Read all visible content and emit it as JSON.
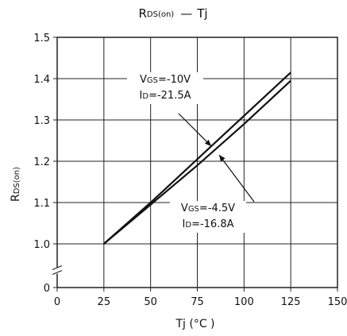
{
  "chart_data": {
    "type": "line",
    "title": {
      "main": "R",
      "main_sub": "DS(on)",
      "sep": "—",
      "var": "Tj"
    },
    "xlabel": "Tj (°C )",
    "ylabel": {
      "main": "R",
      "sub": "DS(on)"
    },
    "xlim": [
      0,
      150
    ],
    "ylim": [
      0,
      1.5
    ],
    "x_ticks": [
      0,
      25,
      50,
      75,
      100,
      125,
      150
    ],
    "y_ticks": [
      0,
      1.0,
      1.1,
      1.2,
      1.3,
      1.4,
      1.5
    ],
    "x_tick_labels": [
      "0",
      "25",
      "50",
      "75",
      "100",
      "125",
      "150"
    ],
    "y_tick_labels": [
      "0",
      "1.0",
      "1.1",
      "1.2",
      "1.3",
      "1.4",
      "1.5"
    ],
    "axis_break": true,
    "grid": true,
    "series": [
      {
        "x": [
          25,
          50,
          75,
          100,
          125
        ],
        "y": [
          1.0,
          1.1,
          1.205,
          1.31,
          1.415
        ]
      },
      {
        "x": [
          25,
          50,
          75,
          100,
          125
        ],
        "y": [
          1.0,
          1.095,
          1.19,
          1.29,
          1.395
        ]
      }
    ],
    "annotations": [
      {
        "line1_main": "V",
        "line1_sub": "GS",
        "line1_val": "=-10V",
        "line2_main": "I",
        "line2_sub": "D",
        "line2_val": "=-21.5A",
        "series_index": 0
      },
      {
        "line1_main": "V",
        "line1_sub": "GS",
        "line1_val": "=-4.5V",
        "line2_main": "I",
        "line2_sub": "D",
        "line2_val": "=-16.8A",
        "series_index": 1
      }
    ],
    "colors": {
      "line": "#111111",
      "grid": "#222222"
    }
  }
}
